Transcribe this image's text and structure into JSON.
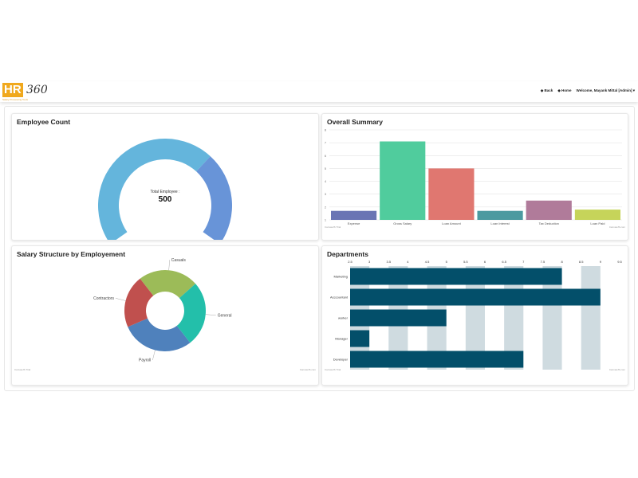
{
  "header": {
    "logo_text": "HR",
    "logo_number": "360",
    "logo_tagline": "Salary Processing Tools",
    "back": "Back",
    "home": "Home",
    "welcome": "Welcome, Mayank Mittal [Admin]"
  },
  "credits": {
    "left": "CanvasJS Trial",
    "right": "CanvasJS.com"
  },
  "employee_count": {
    "title": "Employee Count",
    "center_label": "Total Employee :",
    "center_value": "500",
    "gauge_segments": [
      {
        "fraction": 0.67,
        "color": "#64b5dc"
      },
      {
        "fraction": 0.33,
        "color": "#6894d8"
      }
    ]
  },
  "chart_data": [
    {
      "type": "bar",
      "title": "Overall Summary",
      "categories": [
        "Expense",
        "Gross Salary",
        "Loan Amount",
        "Loan Interest",
        "Tax Deduction",
        "Loan Paid"
      ],
      "values": [
        1.7,
        7.1,
        5,
        1.7,
        2.5,
        1.8
      ],
      "colors": [
        "#6a75b4",
        "#50cc9d",
        "#e07770",
        "#4c9aa0",
        "#b07b9a",
        "#c6d45a"
      ],
      "ylim": [
        1,
        8
      ],
      "yticks": [
        "1",
        "2",
        "3",
        "4",
        "5",
        "6",
        "7",
        "8"
      ],
      "grid": true
    },
    {
      "type": "pie",
      "title": "Salary Structure by Employement",
      "donut": true,
      "categories": [
        "Casuals",
        "General",
        "Payroll",
        "Contractors"
      ],
      "values": [
        24,
        26,
        29,
        21
      ],
      "colors": [
        "#9cbb58",
        "#23bfaa",
        "#4f81bc",
        "#c0504e"
      ]
    },
    {
      "type": "bar",
      "orientation": "horizontal",
      "title": "Departments",
      "categories": [
        "Marketing",
        "Acccountant",
        "worker",
        "Manager",
        "Developer"
      ],
      "values": [
        8,
        9,
        5,
        3,
        7
      ],
      "color": "#034f6a",
      "xlim": [
        2.5,
        9.5
      ],
      "xticks": [
        "2.5",
        "3",
        "3.5",
        "4",
        "4.5",
        "5",
        "5.5",
        "6",
        "6.5",
        "7",
        "7.5",
        "8",
        "8.5",
        "9",
        "9.5"
      ],
      "band_color": "#cfdbe0"
    }
  ]
}
